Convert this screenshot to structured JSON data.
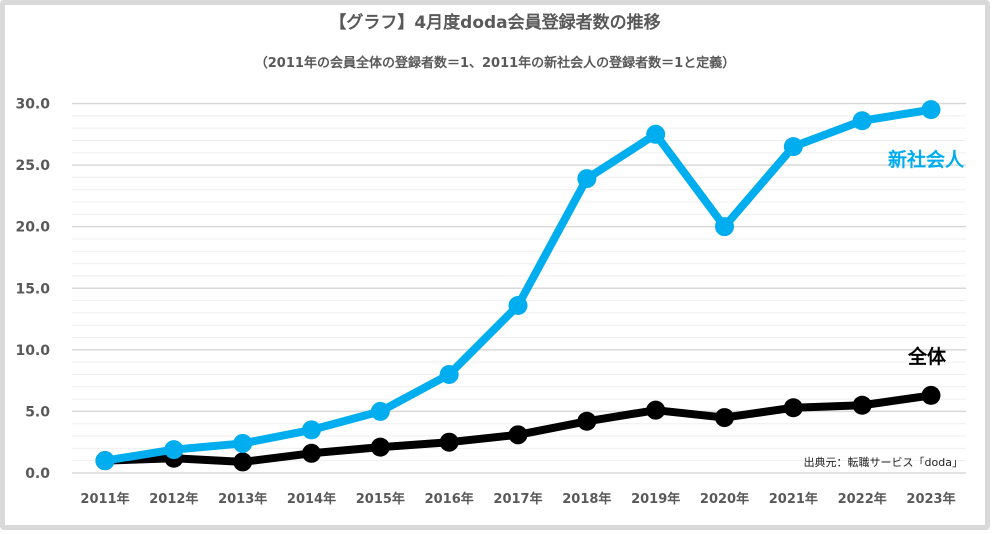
{
  "chart_data": {
    "type": "line",
    "title": "【グラフ】4月度doda会員登録者数の推移",
    "subtitle": "（2011年の会員全体の登録者数＝1、2011年の新社会人の登録者数＝1と定義）",
    "xlabel": "",
    "ylabel": "",
    "categories": [
      "2011年",
      "2012年",
      "2013年",
      "2014年",
      "2015年",
      "2016年",
      "2017年",
      "2018年",
      "2019年",
      "2020年",
      "2021年",
      "2022年",
      "2023年"
    ],
    "ylim": [
      0,
      30
    ],
    "yticks": [
      "0.0",
      "5.0",
      "10.0",
      "15.0",
      "20.0",
      "25.0",
      "30.0"
    ],
    "grid": true,
    "series": [
      {
        "name": "新社会人",
        "color": "#00aeef",
        "values": [
          1.0,
          1.9,
          2.4,
          3.5,
          5.0,
          8.0,
          13.6,
          23.9,
          27.5,
          20.0,
          26.5,
          28.6,
          29.5
        ]
      },
      {
        "name": "全体",
        "color": "#000000",
        "values": [
          1.0,
          1.2,
          0.9,
          1.6,
          2.1,
          2.5,
          3.1,
          4.2,
          5.1,
          4.5,
          5.3,
          5.5,
          6.3
        ]
      }
    ],
    "source": "出典元：転職サービス「doda」"
  }
}
